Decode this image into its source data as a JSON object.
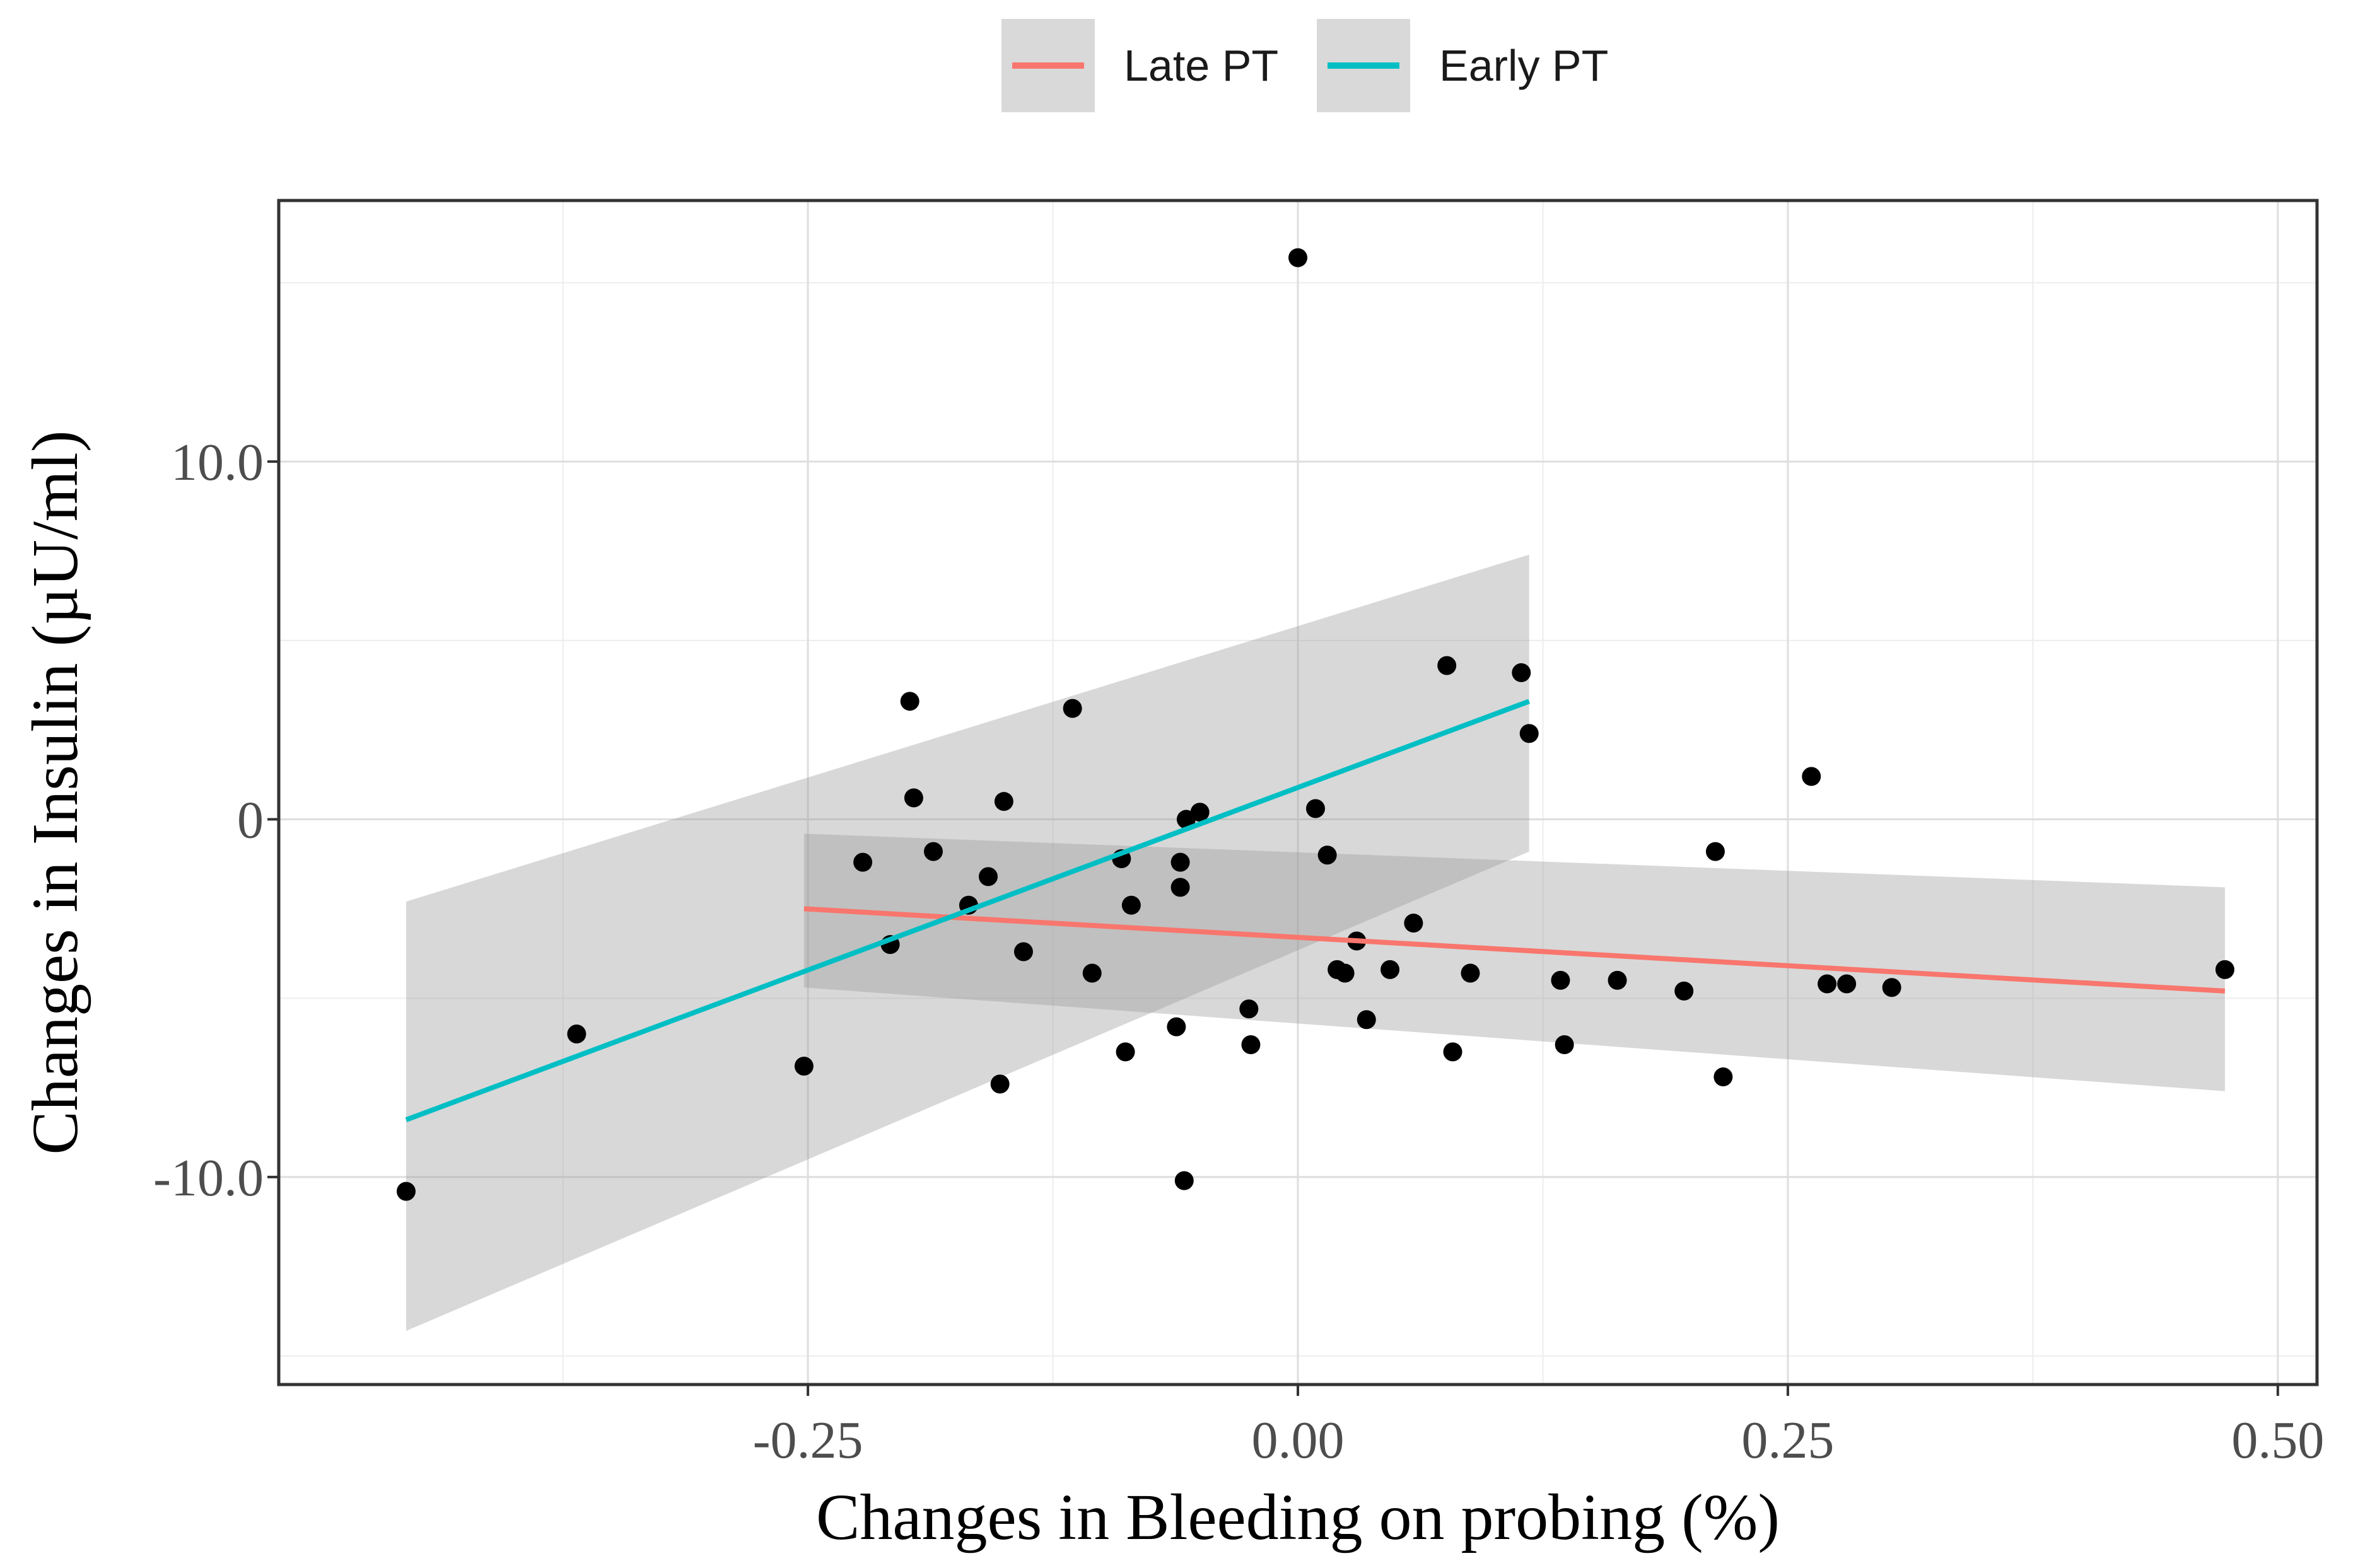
{
  "chart_data": {
    "type": "scatter",
    "title": "",
    "xlabel": "Changes in Bleeding on probing (%)",
    "ylabel": "Changes in Insulin (µU/ml)",
    "xlim": [
      -0.52,
      0.52
    ],
    "ylim": [
      -15.8,
      17.3
    ],
    "x_ticks": [
      -0.25,
      0.0,
      0.25,
      0.5
    ],
    "x_tick_labels": [
      "-0.25",
      "0.00",
      "0.25",
      "0.50"
    ],
    "y_ticks": [
      -10,
      0,
      10
    ],
    "y_tick_labels": [
      "-10.0",
      "0",
      "10.0"
    ],
    "grid": true,
    "legend": {
      "position": "top",
      "entries": [
        {
          "name": "Late PT",
          "color": "#F8766D"
        },
        {
          "name": "Early PT",
          "color": "#00BFC4"
        }
      ]
    },
    "points": [
      {
        "x": -0.455,
        "y": -10.4
      },
      {
        "x": -0.368,
        "y": -6.0
      },
      {
        "x": -0.252,
        "y": -6.9
      },
      {
        "x": -0.222,
        "y": -1.2
      },
      {
        "x": -0.208,
        "y": -3.5
      },
      {
        "x": -0.198,
        "y": 3.3
      },
      {
        "x": -0.196,
        "y": 0.6
      },
      {
        "x": -0.186,
        "y": -0.9
      },
      {
        "x": -0.168,
        "y": -2.4
      },
      {
        "x": -0.158,
        "y": -1.6
      },
      {
        "x": -0.15,
        "y": 0.5
      },
      {
        "x": -0.152,
        "y": -7.4
      },
      {
        "x": -0.14,
        "y": -3.7
      },
      {
        "x": -0.115,
        "y": 3.1
      },
      {
        "x": -0.105,
        "y": -4.3
      },
      {
        "x": -0.09,
        "y": -1.1
      },
      {
        "x": -0.088,
        "y": -6.5
      },
      {
        "x": -0.085,
        "y": -2.4
      },
      {
        "x": -0.062,
        "y": -5.8
      },
      {
        "x": -0.06,
        "y": -1.2
      },
      {
        "x": -0.06,
        "y": -1.9
      },
      {
        "x": -0.058,
        "y": -10.1
      },
      {
        "x": -0.057,
        "y": 0.0
      },
      {
        "x": -0.05,
        "y": 0.2
      },
      {
        "x": -0.025,
        "y": -5.3
      },
      {
        "x": -0.024,
        "y": -6.3
      },
      {
        "x": 0.0,
        "y": 15.7
      },
      {
        "x": 0.009,
        "y": 0.3
      },
      {
        "x": 0.015,
        "y": -1.0
      },
      {
        "x": 0.02,
        "y": -4.2
      },
      {
        "x": 0.024,
        "y": -4.3
      },
      {
        "x": 0.03,
        "y": -3.4
      },
      {
        "x": 0.035,
        "y": -5.6
      },
      {
        "x": 0.047,
        "y": -4.2
      },
      {
        "x": 0.059,
        "y": -2.9
      },
      {
        "x": 0.076,
        "y": 4.3
      },
      {
        "x": 0.079,
        "y": -6.5
      },
      {
        "x": 0.088,
        "y": -4.3
      },
      {
        "x": 0.114,
        "y": 4.1
      },
      {
        "x": 0.118,
        "y": 2.4
      },
      {
        "x": 0.134,
        "y": -4.5
      },
      {
        "x": 0.136,
        "y": -6.3
      },
      {
        "x": 0.163,
        "y": -4.5
      },
      {
        "x": 0.197,
        "y": -4.8
      },
      {
        "x": 0.213,
        "y": -0.9
      },
      {
        "x": 0.217,
        "y": -7.2
      },
      {
        "x": 0.262,
        "y": 1.2
      },
      {
        "x": 0.27,
        "y": -4.6
      },
      {
        "x": 0.28,
        "y": -4.6
      },
      {
        "x": 0.303,
        "y": -4.7
      },
      {
        "x": 0.473,
        "y": -4.2
      }
    ],
    "series": [
      {
        "name": "Late PT",
        "color": "#F8766D",
        "fit_x": [
          -0.252,
          0.473
        ],
        "fit_y": [
          -2.5,
          -4.8
        ],
        "ci_lower": [
          -4.7,
          -7.6
        ],
        "ci_upper": [
          -0.4,
          -1.9
        ]
      },
      {
        "name": "Early PT",
        "color": "#00BFC4",
        "fit_x": [
          -0.455,
          0.118
        ],
        "fit_y": [
          -8.4,
          3.3
        ],
        "ci_lower": [
          -14.3,
          -0.9
        ],
        "ci_upper": [
          -2.3,
          7.4
        ]
      }
    ]
  }
}
